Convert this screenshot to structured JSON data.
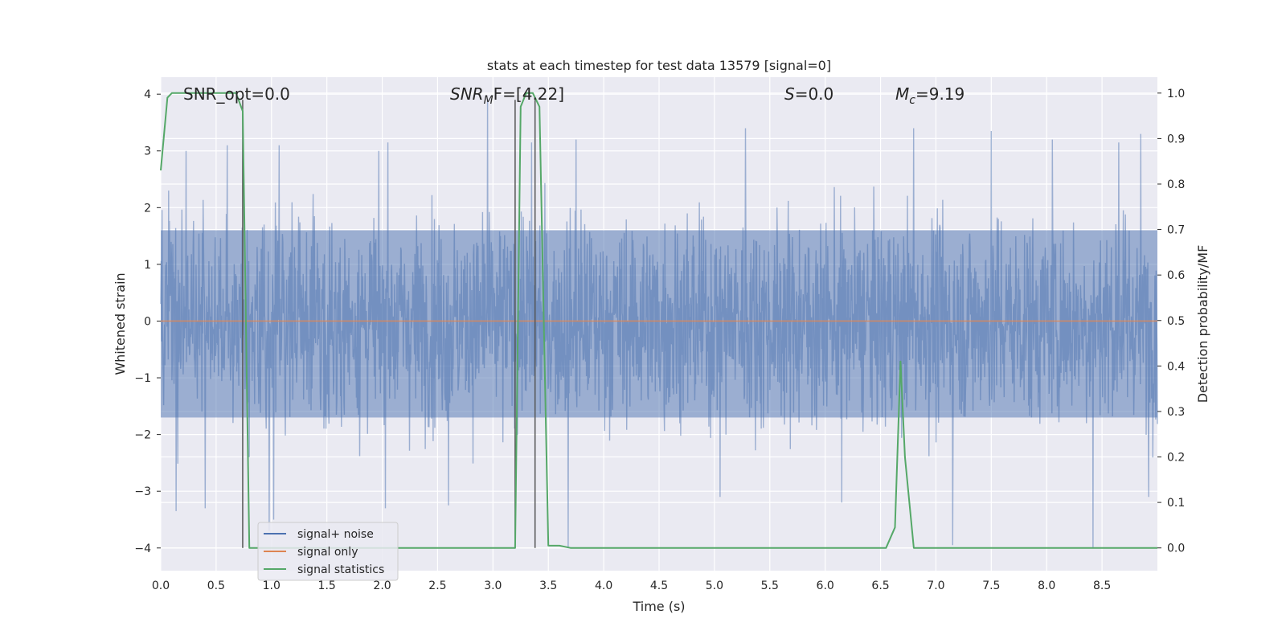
{
  "chart_data": {
    "type": "line",
    "title": "stats at each timestep for test data 13579 [signal=0]",
    "xlabel": "Time (s)",
    "ylabel": "Whitened strain",
    "ylabel_right": "Detection probability/MF",
    "xlim": [
      0.0,
      9.0
    ],
    "ylim": [
      -4.4,
      4.3
    ],
    "ylim_right": [
      -0.05,
      1.035
    ],
    "xticks": [
      "0.0",
      "0.5",
      "1.0",
      "1.5",
      "2.0",
      "2.5",
      "3.0",
      "3.5",
      "4.0",
      "4.5",
      "5.0",
      "5.5",
      "6.0",
      "6.5",
      "7.0",
      "7.5",
      "8.0",
      "8.5"
    ],
    "yticks_left": [
      "4",
      "3",
      "2",
      "1",
      "0",
      "−1",
      "−2",
      "−3",
      "−4"
    ],
    "yticks_right": [
      "1.0",
      "0.9",
      "0.8",
      "0.7",
      "0.6",
      "0.5",
      "0.4",
      "0.3",
      "0.2",
      "0.1",
      "0.0"
    ],
    "grid": true,
    "legend_position": "lower-left",
    "background": "#eaeaf2",
    "annotations": {
      "snr_opt": "SNR_opt=0.0",
      "snr_mf_main": "SNR",
      "snr_mf_sub": "M",
      "snr_mf_rest": "F=[4.22]",
      "s_main": "S",
      "s_rest": "=0.0",
      "mc_main": "M",
      "mc_sub": "c",
      "mc_rest": "=9.19"
    },
    "series": [
      {
        "name": "signal+ noise",
        "color": "#4c72b0",
        "description_values": "whitened noise samples, approx Gaussian, range -4 to 4",
        "duration": 9.0,
        "typical_envelope": [
          -1.7,
          1.6
        ],
        "peaks": [
          [
            0.07,
            2.3
          ],
          [
            0.23,
            3.0
          ],
          [
            0.6,
            3.1
          ],
          [
            1.07,
            3.1
          ],
          [
            2.05,
            3.15
          ],
          [
            2.95,
            3.9
          ],
          [
            3.35,
            3.15
          ],
          [
            3.75,
            3.2
          ],
          [
            5.28,
            3.4
          ],
          [
            6.8,
            3.4
          ],
          [
            7.5,
            3.35
          ],
          [
            8.05,
            3.2
          ],
          [
            8.65,
            3.15
          ],
          [
            8.85,
            3.3
          ]
        ],
        "troughs": [
          [
            0.14,
            -3.35
          ],
          [
            0.4,
            -3.3
          ],
          [
            0.98,
            -3.7
          ],
          [
            1.02,
            -3.5
          ],
          [
            2.03,
            -3.3
          ],
          [
            2.6,
            -3.25
          ],
          [
            3.68,
            -4.0
          ],
          [
            5.05,
            -3.1
          ],
          [
            6.15,
            -3.2
          ],
          [
            7.15,
            -3.95
          ],
          [
            8.42,
            -4.0
          ],
          [
            8.92,
            -3.1
          ]
        ]
      },
      {
        "name": "signal only",
        "color": "#dd8452",
        "x": [
          0.0,
          9.0
        ],
        "y": [
          0.0,
          0.0
        ]
      },
      {
        "name": "signal statistics",
        "color": "#55a868",
        "axis": "right",
        "x": [
          0.0,
          0.06,
          0.1,
          0.2,
          0.5,
          0.68,
          0.74,
          0.8,
          0.9,
          3.15,
          3.2,
          3.25,
          3.3,
          3.36,
          3.42,
          3.5,
          3.6,
          3.7,
          6.5,
          6.55,
          6.63,
          6.68,
          6.72,
          6.8,
          6.9,
          9.0
        ],
        "y": [
          0.83,
          0.99,
          1.0,
          1.0,
          1.0,
          1.0,
          0.96,
          0.0,
          0.0,
          0.0,
          0.0,
          0.97,
          1.0,
          1.0,
          0.97,
          0.005,
          0.005,
          0.0,
          0.0,
          0.0,
          0.045,
          0.41,
          0.2,
          0.0,
          0.0,
          0.0
        ]
      }
    ],
    "vertical_lines": [
      {
        "x": 0.74,
        "y_top": 3.9,
        "y_bottom": -4.0,
        "color": "#555555"
      },
      {
        "x": 3.2,
        "y_top": 3.9,
        "y_bottom": -4.0,
        "color": "#555555"
      },
      {
        "x": 3.38,
        "y_top": 3.9,
        "y_bottom": -4.0,
        "color": "#555555"
      }
    ]
  }
}
